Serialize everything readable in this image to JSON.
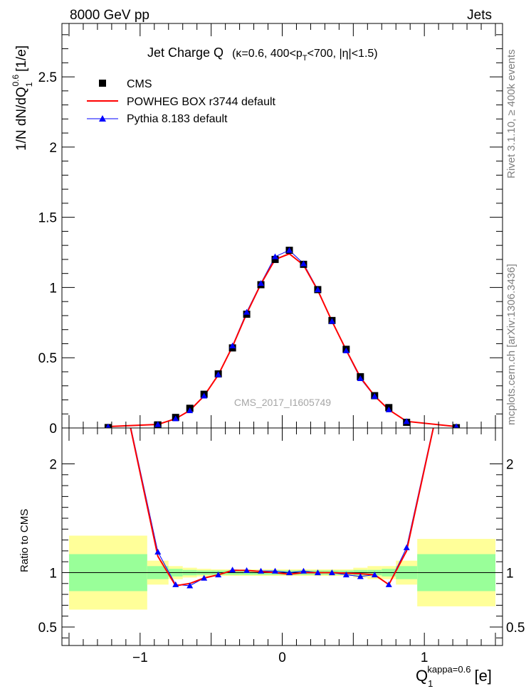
{
  "header": {
    "left": "8000 GeV pp",
    "right": "Jets"
  },
  "side_text": {
    "top": "Rivet 3.1.10, ≥ 400k events",
    "bottom": "mcplots.cern.ch [arXiv:1306.3436]"
  },
  "watermark": "CMS_2017_I1605749",
  "colors": {
    "data": "#000000",
    "powheg": "#ff0000",
    "pythia": "#0000ff",
    "pythia_marker": "#0000ff",
    "band_inner": "#99ff99",
    "band_outer": "#ffff99"
  },
  "chart_data": [
    {
      "type": "scatter",
      "panel": "main",
      "title": "Jet Charge Q  (κ=0.6, 400<p_T<700, |η|<1.5)",
      "title_main": "Jet Charge Q",
      "title_cond": "(κ=0.6, 400<p",
      "title_sub": "T",
      "title_cond2": "<700, |η|<1.5)",
      "ylabel": "1/N dN/dQ",
      "ylabel_sup": "0.6",
      "ylabel_sub": "1",
      "ylabel_unit": "[1/e]",
      "xlim": [
        -1.55,
        1.55
      ],
      "ylim": [
        0,
        2.88
      ],
      "y_ticks": [
        0,
        0.5,
        1,
        1.5,
        2,
        2.5
      ],
      "y_tick_labels": [
        "0",
        "0.5",
        "1",
        "1.5",
        "2",
        "2.5"
      ],
      "legend_position": "top-left",
      "x": [
        -1.225,
        -0.875,
        -0.75,
        -0.65,
        -0.55,
        -0.45,
        -0.35,
        -0.25,
        -0.15,
        -0.05,
        0.05,
        0.15,
        0.25,
        0.35,
        0.45,
        0.55,
        0.65,
        0.75,
        0.875,
        1.225
      ],
      "series": [
        {
          "name": "CMS",
          "values": [
            0.003,
            0.022,
            0.075,
            0.14,
            0.24,
            0.385,
            0.57,
            0.81,
            1.02,
            1.2,
            1.265,
            1.165,
            0.985,
            0.765,
            0.56,
            0.365,
            0.23,
            0.145,
            0.04,
            0.002
          ]
        },
        {
          "name": "POWHEG BOX r3744 default",
          "values": [
            0.01,
            0.025,
            0.066,
            0.125,
            0.228,
            0.378,
            0.58,
            0.815,
            1.025,
            1.2,
            1.24,
            1.16,
            0.98,
            0.76,
            0.555,
            0.36,
            0.228,
            0.13,
            0.047,
            0.01
          ]
        },
        {
          "name": "Pythia 8.183 default",
          "values": [
            0.009,
            0.025,
            0.066,
            0.124,
            0.228,
            0.38,
            0.585,
            0.825,
            1.03,
            1.22,
            1.265,
            1.17,
            0.985,
            0.76,
            0.55,
            0.352,
            0.225,
            0.13,
            0.047,
            0.01
          ]
        }
      ]
    },
    {
      "type": "line",
      "panel": "ratio",
      "ylabel": "Ratio to CMS",
      "xlabel": "Q",
      "xlabel_sub": "1",
      "xlabel_sup": "kappa=0.6",
      "xlabel_unit": "[e]",
      "xlim": [
        -1.55,
        1.55
      ],
      "ylim": [
        0.33,
        2.33
      ],
      "y_ticks": [
        0.5,
        1,
        2
      ],
      "y_tick_labels": [
        "0.5",
        "1",
        "2"
      ],
      "x_ticks": [
        -1,
        0,
        1
      ],
      "x_tick_labels": [
        "−1",
        "0",
        "1"
      ],
      "bin_edges": [
        -1.5,
        -0.95,
        -0.8,
        -0.7,
        -0.6,
        -0.5,
        -0.4,
        -0.3,
        -0.2,
        -0.1,
        0,
        0.1,
        0.2,
        0.3,
        0.4,
        0.5,
        0.6,
        0.7,
        0.8,
        0.95,
        1.5
      ],
      "band_inner_halfwidth": [
        0.17,
        0.06,
        0.035,
        0.025,
        0.02,
        0.02,
        0.02,
        0.02,
        0.02,
        0.02,
        0.02,
        0.02,
        0.02,
        0.02,
        0.02,
        0.025,
        0.025,
        0.035,
        0.06,
        0.17
      ],
      "band_outer_halfwidth": [
        0.34,
        0.11,
        0.06,
        0.045,
        0.035,
        0.03,
        0.03,
        0.03,
        0.03,
        0.03,
        0.03,
        0.03,
        0.03,
        0.03,
        0.03,
        0.045,
        0.06,
        0.06,
        0.11,
        0.31
      ],
      "x": [
        -1.225,
        -0.875,
        -0.75,
        -0.65,
        -0.55,
        -0.45,
        -0.35,
        -0.25,
        -0.15,
        -0.05,
        0.05,
        0.15,
        0.25,
        0.35,
        0.45,
        0.55,
        0.65,
        0.75,
        0.875,
        1.225
      ],
      "series": [
        {
          "name": "POWHEG BOX r3744 default",
          "values": [
            3.3,
            1.15,
            0.88,
            0.9,
            0.95,
            0.98,
            1.02,
            1.02,
            1.01,
            1.0,
            0.985,
            1.0,
            1.0,
            1.0,
            0.995,
            0.99,
            0.98,
            0.89,
            1.2,
            3.3
          ]
        },
        {
          "name": "Pythia 8.183 default",
          "values": [
            3.3,
            1.19,
            0.89,
            0.88,
            0.95,
            0.98,
            1.025,
            1.02,
            1.015,
            1.015,
            1.0,
            1.015,
            1.0,
            1.0,
            0.98,
            0.965,
            0.98,
            0.89,
            1.23,
            3.3
          ]
        }
      ]
    }
  ]
}
